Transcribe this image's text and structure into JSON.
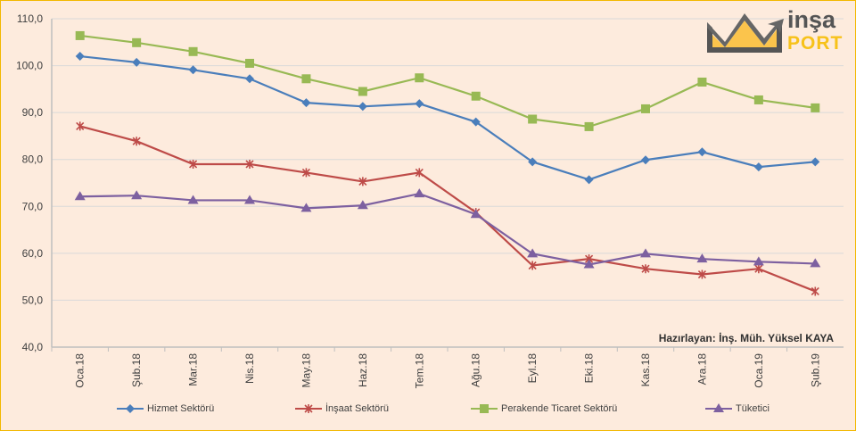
{
  "chart_data": {
    "type": "line",
    "title": "",
    "xlabel": "",
    "ylabel": "",
    "ylim": [
      40,
      110
    ],
    "yticks": [
      "40,0",
      "50,0",
      "60,0",
      "70,0",
      "80,0",
      "90,0",
      "100,0",
      "110,0"
    ],
    "grid": true,
    "legend_position": "bottom",
    "categories": [
      "Oca.18",
      "Şub.18",
      "Mar.18",
      "Nis.18",
      "May.18",
      "Haz.18",
      "Tem.18",
      "Ağu.18",
      "Eyl.18",
      "Eki.18",
      "Kas.18",
      "Ara.18",
      "Oca.19",
      "Şub.19"
    ],
    "series": [
      {
        "name": "Hizmet Sektörü",
        "color": "#4a7ebb",
        "marker": "diamond",
        "values": [
          102.0,
          100.7,
          99.1,
          97.2,
          92.1,
          91.3,
          91.9,
          88.0,
          79.5,
          75.7,
          79.9,
          81.6,
          78.4,
          79.5
        ]
      },
      {
        "name": "İnşaat Sektörü",
        "color": "#be4b48",
        "marker": "star",
        "values": [
          87.1,
          83.9,
          79.0,
          79.0,
          77.2,
          75.3,
          77.2,
          68.7,
          57.4,
          58.8,
          56.7,
          55.5,
          56.7,
          51.9
        ]
      },
      {
        "name": "Perakende Ticaret Sektörü",
        "color": "#98b954",
        "marker": "square",
        "values": [
          106.4,
          104.9,
          103.0,
          100.5,
          97.2,
          94.5,
          97.4,
          93.5,
          88.6,
          87.0,
          90.8,
          96.5,
          92.7,
          91.0
        ]
      },
      {
        "name": "Tüketici",
        "color": "#7d60a0",
        "marker": "triangle",
        "values": [
          72.1,
          72.3,
          71.3,
          71.3,
          69.6,
          70.2,
          72.7,
          68.3,
          59.9,
          57.6,
          59.9,
          58.8,
          58.2,
          57.8
        ]
      }
    ],
    "annotation": "Hazırlayan: İnş. Müh. Yüksel KAYA"
  },
  "logo": {
    "line1": "inşa",
    "line2": "PORT"
  }
}
